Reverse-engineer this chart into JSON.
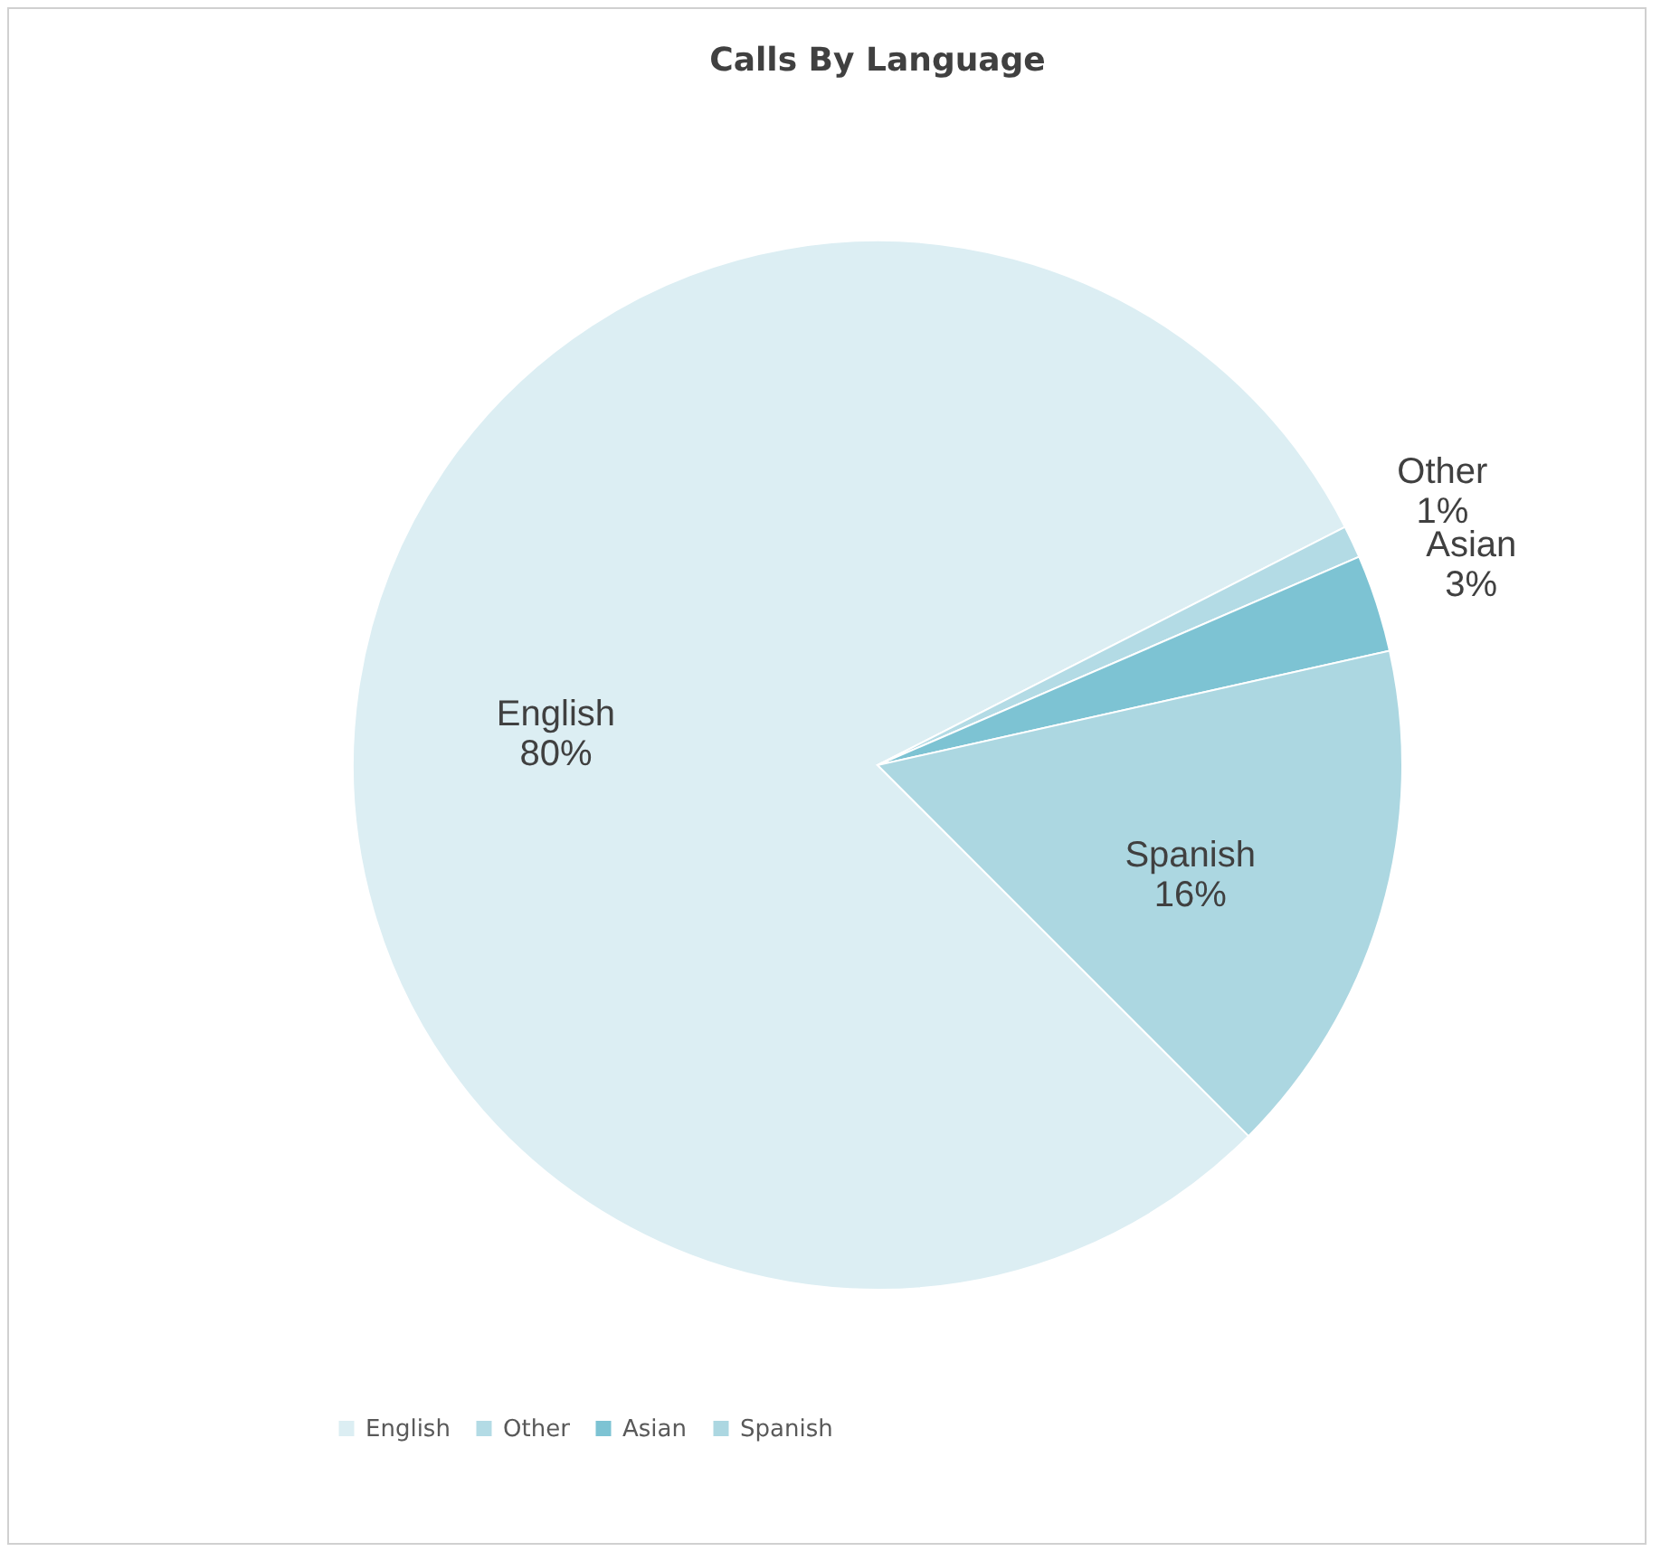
{
  "chart_data": {
    "type": "pie",
    "title": "Calls By Language",
    "categories": [
      "English",
      "Other",
      "Asian",
      "Spanish"
    ],
    "values": [
      80,
      1,
      3,
      16
    ],
    "value_labels": [
      "80%",
      "1%",
      "3%",
      "16%"
    ],
    "colors": [
      "#dceef3",
      "#b3dbe5",
      "#7dc3d3",
      "#acd7e1"
    ],
    "legend": "bottom"
  }
}
